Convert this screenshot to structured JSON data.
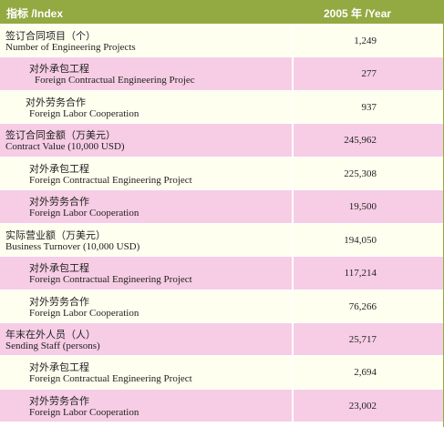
{
  "header": {
    "index_label": "指标 /Index",
    "year_label": "2005 年 /Year"
  },
  "rows": [
    {
      "type": "main",
      "zh": "签订合同项目（个）",
      "en": "Number of Engineering Projects",
      "value": "1,249"
    },
    {
      "type": "sub",
      "zh": "对外承包工程",
      "en": "Foreign Contractual Engineering Projec",
      "value": "277"
    },
    {
      "type": "sub2",
      "zh": "对外劳务合作",
      "en": "Foreign Labor Cooperation",
      "value": "937"
    },
    {
      "type": "main",
      "zh": "签订合同金额（万美元）",
      "en": "Contract Value (10,000 USD)",
      "value": "245,962"
    },
    {
      "type": "sub2",
      "zh": "对外承包工程",
      "en": "Foreign Contractual Engineering Project",
      "value": "225,308"
    },
    {
      "type": "sub",
      "zh": "对外劳务合作",
      "en": "Foreign Labor Cooperation",
      "value": "19,500"
    },
    {
      "type": "main",
      "zh": "实际营业额（万美元）",
      "en": "Business Turnover (10,000 USD)",
      "value": "194,050"
    },
    {
      "type": "sub",
      "zh": "对外承包工程",
      "en": "Foreign Contractual Engineering Project",
      "value": "117,214"
    },
    {
      "type": "sub2",
      "zh": "对外劳务合作",
      "en": "Foreign Labor Cooperation",
      "value": "76,266"
    },
    {
      "type": "main",
      "zh": "年末在外人员（人）",
      "en": "Sending Staff (persons)",
      "value": "25,717"
    },
    {
      "type": "sub2",
      "zh": "对外承包工程",
      "en": "Foreign Contractual Engineering Project",
      "value": "2,694"
    },
    {
      "type": "sub",
      "zh": "对外劳务合作",
      "en": "Foreign Labor Cooperation",
      "value": "23,002"
    }
  ],
  "colors": {
    "header_bg": "#93a941",
    "main_bg": "#fffff0",
    "pink_bg": "#f6cde4"
  }
}
